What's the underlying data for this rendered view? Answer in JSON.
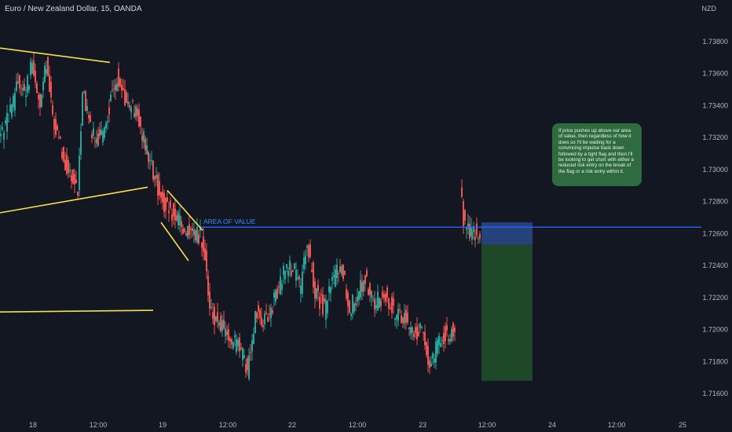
{
  "header": {
    "title": "Euro / New Zealand Dollar, 15, OANDA",
    "currency": "NZD"
  },
  "colors": {
    "background": "#131722",
    "up": "#26a69a",
    "down": "#ef5350",
    "trendline": "#f7e04b",
    "level": "#2962ff",
    "level_label": "#2f8cff",
    "target_zone": "#1f4c2a",
    "stop_zone": "#27457f",
    "callout": "#2e6b3e",
    "axis_text": "#b2b5be"
  },
  "annotations": {
    "area_label": "AREA OF VALUE",
    "callout_text": "If price pushes up above our area of value, then regardless of how it does so I'll be waiting for a convincing impulse back down followed by a tight flag and then I'll be looking to get short with either a reduced risk entry on the break of the flag or a risk entry within it."
  },
  "chart_data": {
    "type": "candlestick",
    "title": "Euro / New Zealand Dollar, 15, OANDA",
    "y_unit": "NZD",
    "ylim": [
      1.7152,
      1.7398
    ],
    "y_ticks": [
      1.738,
      1.736,
      1.734,
      1.732,
      1.73,
      1.728,
      1.726,
      1.724,
      1.722,
      1.72,
      1.718,
      1.716
    ],
    "y_tick_labels": [
      "1.73800",
      "1.73600",
      "1.73400",
      "1.73200",
      "1.73000",
      "1.72800",
      "1.72600",
      "1.72400",
      "1.72200",
      "1.72000",
      "1.71800",
      "1.71600"
    ],
    "x_tick_labels": [
      "18",
      "12:00",
      "19",
      "12:00",
      "22",
      "12:00",
      "23",
      "12:00",
      "24",
      "12:00",
      "25"
    ],
    "area_of_value": 1.7264,
    "price_path": [
      {
        "x": 0,
        "price": 1.732
      },
      {
        "x": 14,
        "price": 1.7335
      },
      {
        "x": 24,
        "price": 1.7355
      },
      {
        "x": 32,
        "price": 1.7348
      },
      {
        "x": 42,
        "price": 1.7365
      },
      {
        "x": 52,
        "price": 1.7338
      },
      {
        "x": 60,
        "price": 1.7368
      },
      {
        "x": 66,
        "price": 1.734
      },
      {
        "x": 74,
        "price": 1.732
      },
      {
        "x": 84,
        "price": 1.7305
      },
      {
        "x": 92,
        "price": 1.7295
      },
      {
        "x": 100,
        "price": 1.7285
      },
      {
        "x": 106,
        "price": 1.7352
      },
      {
        "x": 114,
        "price": 1.733
      },
      {
        "x": 124,
        "price": 1.7318
      },
      {
        "x": 134,
        "price": 1.7325
      },
      {
        "x": 142,
        "price": 1.7345
      },
      {
        "x": 150,
        "price": 1.7358
      },
      {
        "x": 158,
        "price": 1.7345
      },
      {
        "x": 168,
        "price": 1.734
      },
      {
        "x": 178,
        "price": 1.733
      },
      {
        "x": 188,
        "price": 1.731
      },
      {
        "x": 198,
        "price": 1.7295
      },
      {
        "x": 210,
        "price": 1.7278
      },
      {
        "x": 222,
        "price": 1.7272
      },
      {
        "x": 236,
        "price": 1.7262
      },
      {
        "x": 248,
        "price": 1.7258
      },
      {
        "x": 256,
        "price": 1.726
      },
      {
        "x": 262,
        "price": 1.7245
      },
      {
        "x": 268,
        "price": 1.721
      },
      {
        "x": 280,
        "price": 1.7205
      },
      {
        "x": 292,
        "price": 1.7195
      },
      {
        "x": 304,
        "price": 1.719
      },
      {
        "x": 316,
        "price": 1.7175
      },
      {
        "x": 326,
        "price": 1.721
      },
      {
        "x": 340,
        "price": 1.7205
      },
      {
        "x": 352,
        "price": 1.722
      },
      {
        "x": 364,
        "price": 1.724
      },
      {
        "x": 374,
        "price": 1.7238
      },
      {
        "x": 384,
        "price": 1.7225
      },
      {
        "x": 392,
        "price": 1.7255
      },
      {
        "x": 402,
        "price": 1.7225
      },
      {
        "x": 414,
        "price": 1.7212
      },
      {
        "x": 426,
        "price": 1.7232
      },
      {
        "x": 436,
        "price": 1.7242
      },
      {
        "x": 446,
        "price": 1.7212
      },
      {
        "x": 458,
        "price": 1.7225
      },
      {
        "x": 466,
        "price": 1.7232
      },
      {
        "x": 476,
        "price": 1.7215
      },
      {
        "x": 490,
        "price": 1.7222
      },
      {
        "x": 502,
        "price": 1.7212
      },
      {
        "x": 514,
        "price": 1.7208
      },
      {
        "x": 526,
        "price": 1.7198
      },
      {
        "x": 538,
        "price": 1.72
      },
      {
        "x": 546,
        "price": 1.718
      },
      {
        "x": 554,
        "price": 1.7185
      },
      {
        "x": 562,
        "price": 1.7195
      },
      {
        "x": 572,
        "price": 1.7198
      },
      {
        "x": 580,
        "price": 1.7199
      }
    ],
    "segment2_path": [
      {
        "x": 587,
        "price": 1.7285
      },
      {
        "x": 591,
        "price": 1.727
      },
      {
        "x": 595,
        "price": 1.7262
      },
      {
        "x": 600,
        "price": 1.7262
      },
      {
        "x": 606,
        "price": 1.7262
      },
      {
        "x": 612,
        "price": 1.7261
      }
    ],
    "trendlines": [
      {
        "p1": {
          "x": 0,
          "price": 1.7376
        },
        "p2": {
          "x": 140,
          "price": 1.7367
        }
      },
      {
        "p1": {
          "x": 0,
          "price": 1.7273
        },
        "p2": {
          "x": 188,
          "price": 1.7289
        }
      },
      {
        "p1": {
          "x": 0,
          "price": 1.7211
        },
        "p2": {
          "x": 195,
          "price": 1.7212
        }
      },
      {
        "p1": {
          "x": 213,
          "price": 1.7287
        },
        "p2": {
          "x": 258,
          "price": 1.7262
        }
      },
      {
        "p1": {
          "x": 205,
          "price": 1.7267
        },
        "p2": {
          "x": 240,
          "price": 1.7243
        }
      }
    ],
    "position": {
      "stop_top": 1.7267,
      "entry": 1.7253,
      "target": 1.7168,
      "x_start": 613,
      "x_end": 678
    }
  }
}
